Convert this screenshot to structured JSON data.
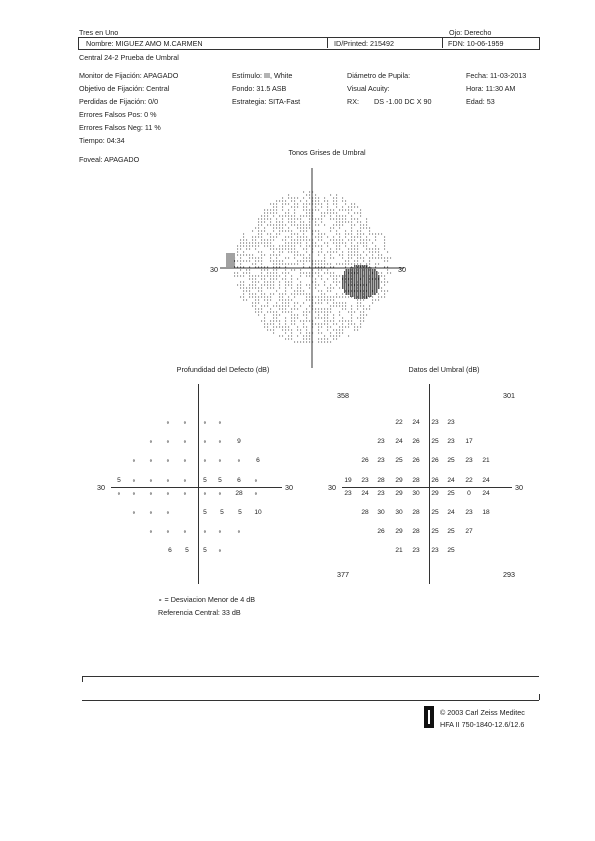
{
  "header": {
    "device": "Tres en Uno",
    "eye": "Ojo: Derecho",
    "name": "Nombre: MIGUEZ AMO M.CARMEN",
    "id": "ID/Printed: 215492",
    "dob": "FDN: 10-06-1959",
    "test": "Central 24-2 Prueba de Umbral"
  },
  "params": {
    "col1": [
      "Monitor de Fijación: APAGADO",
      "Objetivo de Fijación: Central",
      "Perdidas de Fijación: 0/0",
      "Errores Falsos Pos:  0 %",
      "Errores Falsos Neg:  11 %",
      "Tiempo: 04:34"
    ],
    "foveal": "Foveal: APAGADO",
    "col2": [
      "Estímulo: III, White",
      "Fondo: 31.5 ASB",
      "Estrategia: SITA-Fast"
    ],
    "col3": [
      "Diámetro de Pupila:",
      "Visual Acuity:"
    ],
    "rx_label": "RX:",
    "rx_value": "DS  -1.00 DC  X  90",
    "col4": [
      "Fecha: 11-03-2013",
      "Hora: 11:30 AM",
      "Edad: 53"
    ]
  },
  "greyscale": {
    "title": "Tonos Grises de Umbral",
    "left_label": "30",
    "right_label": "30"
  },
  "defect": {
    "title": "Profundidad del Defecto (dB)",
    "left_label": "30",
    "right_label": "30",
    "row1": [
      "∘",
      "∘",
      "∘",
      "∘"
    ],
    "row2": [
      "∘",
      "∘",
      "∘",
      "∘",
      "∘",
      "9"
    ],
    "row3": [
      "∘",
      "∘",
      "∘",
      "∘",
      "∘",
      "∘",
      "∘",
      "6"
    ],
    "row4": [
      "5",
      "∘",
      "∘",
      "∘",
      "∘",
      "5",
      "5",
      "6",
      "∘"
    ],
    "row5": [
      "∘",
      "∘",
      "∘",
      "∘",
      "∘",
      "∘",
      "∘",
      "28",
      "∘"
    ],
    "row6": [
      "∘",
      "∘",
      "∘",
      "5",
      "5",
      "5",
      "10"
    ],
    "row7": [
      "∘",
      "∘",
      "∘",
      "∘",
      "∘",
      "∘"
    ],
    "row8": [
      "6",
      "5",
      "5",
      "∘"
    ],
    "legend": "∘ = Desviacion Menor de 4 dB",
    "reference": "Referencia Central: 33 dB"
  },
  "threshold": {
    "title": "Datos del Umbral (dB)",
    "left_label": "30",
    "right_label": "30",
    "corner_tl": "358",
    "corner_tr": "301",
    "corner_bl": "377",
    "corner_br": "293",
    "row1": [
      "22",
      "24",
      "23",
      "23"
    ],
    "row2": [
      "23",
      "24",
      "26",
      "25",
      "23",
      "17"
    ],
    "row3": [
      "26",
      "23",
      "25",
      "26",
      "26",
      "25",
      "23",
      "21"
    ],
    "row4": [
      "19",
      "23",
      "28",
      "29",
      "28",
      "26",
      "24",
      "22",
      "24"
    ],
    "row5": [
      "23",
      "24",
      "23",
      "29",
      "30",
      "29",
      "25",
      "0",
      "24"
    ],
    "row6": [
      "28",
      "30",
      "30",
      "28",
      "25",
      "24",
      "23",
      "18"
    ],
    "row7": [
      "26",
      "29",
      "28",
      "25",
      "25",
      "27"
    ],
    "row8": [
      "21",
      "23",
      "23",
      "25"
    ]
  },
  "footer": {
    "copyright": "© 2003 Carl Zeiss Meditec",
    "model": "HFA II 750-1840-12.6/12.6"
  }
}
